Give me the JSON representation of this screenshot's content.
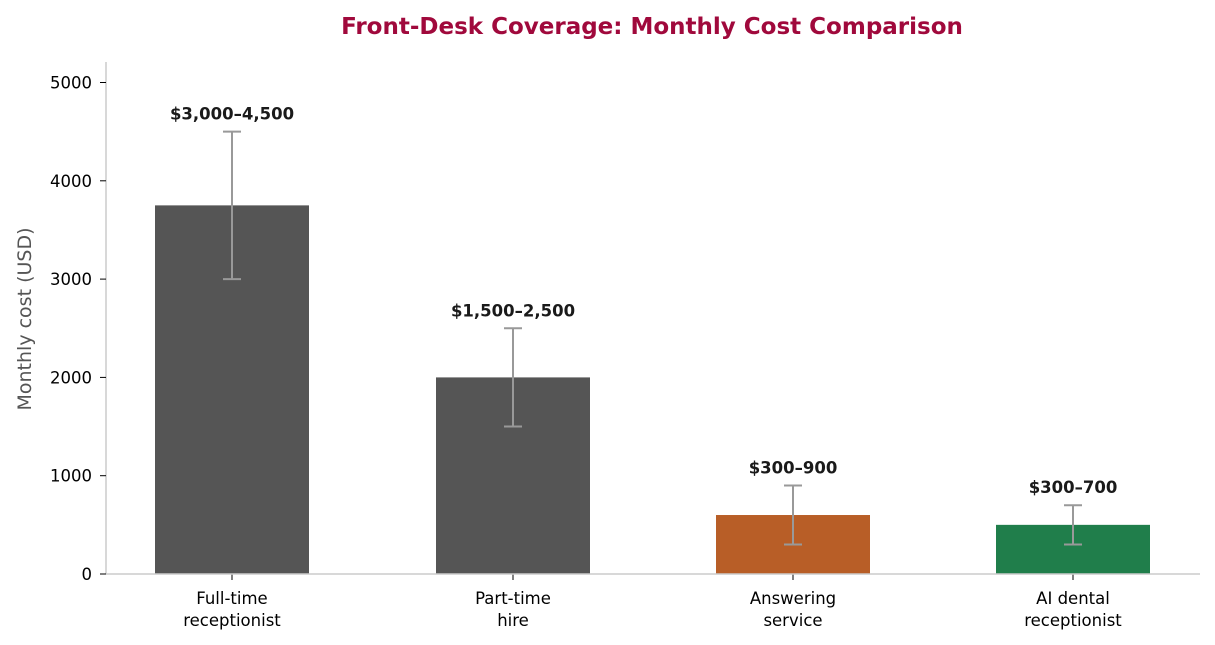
{
  "colors": {
    "title": "#a0093c",
    "axis": "#cccccc",
    "axis_label": "#555555",
    "error_bar": "#999999",
    "bar_default": "#555555",
    "bar_answering": "#b85e27",
    "bar_ai": "#207e4b"
  },
  "chart_data": {
    "type": "bar",
    "title": "Front-Desk Coverage: Monthly Cost Comparison",
    "xlabel": "",
    "ylabel": "Monthly cost (USD)",
    "ylim": [
      0,
      5200
    ],
    "yticks": [
      0,
      1000,
      2000,
      3000,
      4000,
      5000
    ],
    "grid": false,
    "bars": [
      {
        "category_lines": [
          "Full-time",
          "receptionist"
        ],
        "value": 3750,
        "low": 3000,
        "high": 4500,
        "label": "$3,000–4,500",
        "color": "#555555"
      },
      {
        "category_lines": [
          "Part-time",
          "hire"
        ],
        "value": 2000,
        "low": 1500,
        "high": 2500,
        "label": "$1,500–2,500",
        "color": "#555555"
      },
      {
        "category_lines": [
          "Answering",
          "service"
        ],
        "value": 600,
        "low": 300,
        "high": 900,
        "label": "$300–900",
        "color": "#b85e27"
      },
      {
        "category_lines": [
          "AI dental",
          "receptionist"
        ],
        "value": 500,
        "low": 300,
        "high": 700,
        "label": "$300–700",
        "color": "#207e4b"
      }
    ]
  }
}
